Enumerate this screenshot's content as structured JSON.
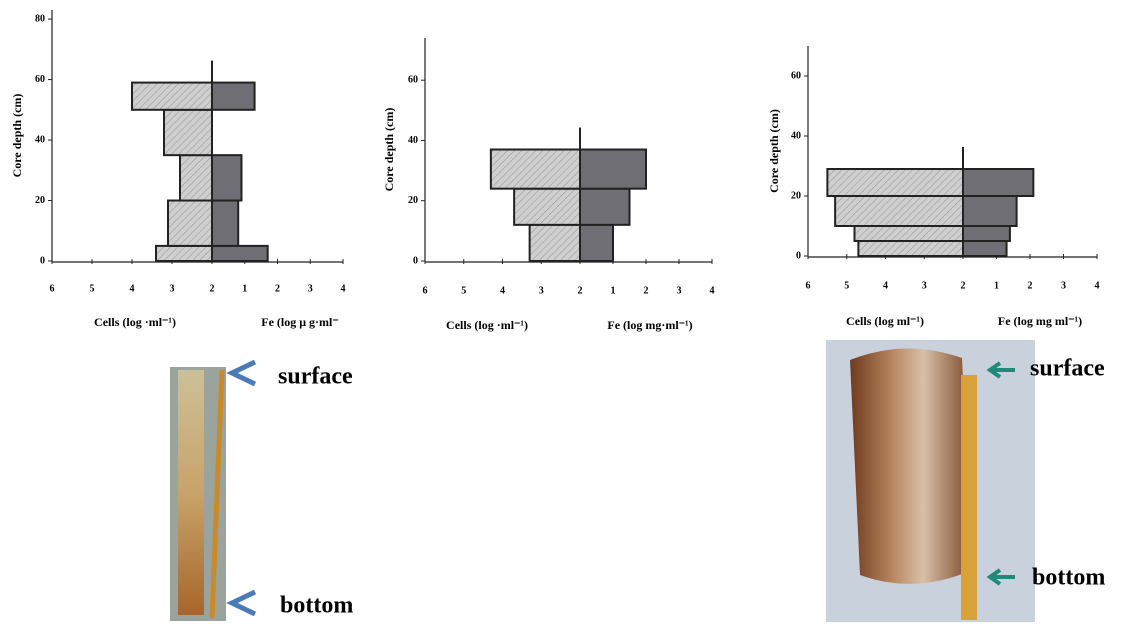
{
  "chart_data": [
    {
      "type": "butterfly",
      "y_label": "Core depth (cm)",
      "left_label": "Cells (log ·ml⁻¹)",
      "right_label": "Fe (log μ g·ml⁻",
      "ylim": [
        0,
        83
      ],
      "yticks": [
        0,
        20,
        40,
        60,
        80
      ],
      "left_xlim": [
        2,
        6
      ],
      "left_xticks": [
        2,
        3,
        4,
        5,
        6
      ],
      "right_xlim": [
        0,
        4
      ],
      "right_xticks": [
        1,
        2,
        3,
        4
      ],
      "depth_bins": [
        0,
        5,
        20,
        35,
        50,
        59
      ],
      "left_values": [
        3.4,
        3.1,
        2.8,
        3.2,
        4.0
      ],
      "right_values": [
        1.7,
        0.8,
        0.9,
        null,
        1.3
      ],
      "left_color": "#c9c9c9",
      "right_color": "#6e6e74"
    },
    {
      "type": "butterfly",
      "y_label": "Core depth (cm)",
      "left_label": "Cells (log ·ml⁻¹)",
      "right_label": "Fe (log mg·ml⁻¹)",
      "ylim": [
        0,
        74
      ],
      "yticks": [
        0,
        20,
        40,
        60
      ],
      "left_xlim": [
        2,
        6
      ],
      "left_xticks": [
        2,
        3,
        4,
        5,
        6
      ],
      "right_xlim": [
        0,
        4
      ],
      "right_xticks": [
        1,
        2,
        3,
        4
      ],
      "depth_bins": [
        0,
        12,
        24,
        37
      ],
      "left_values": [
        3.3,
        3.7,
        4.3
      ],
      "right_values": [
        1.0,
        1.5,
        2.0
      ],
      "left_color": "#c9c9c9",
      "right_color": "#6e6e74"
    },
    {
      "type": "butterfly",
      "y_label": "Core depth (cm)",
      "left_label": "Cells (log ml⁻¹)",
      "right_label": "Fe (log mg ml⁻¹)",
      "ylim": [
        0,
        70
      ],
      "yticks": [
        0,
        20,
        40,
        60
      ],
      "left_xlim": [
        2,
        6
      ],
      "left_xticks": [
        2,
        3,
        4,
        5,
        6
      ],
      "right_xlim": [
        0,
        4
      ],
      "right_xticks": [
        1,
        2,
        3,
        4
      ],
      "depth_bins": [
        0,
        5,
        10,
        20,
        29
      ],
      "left_values": [
        4.7,
        4.8,
        5.3,
        5.5
      ],
      "right_values": [
        1.3,
        1.4,
        1.6,
        2.1
      ],
      "left_color": "#c9c9c9",
      "right_color": "#6e6e74"
    }
  ],
  "photos": [
    {
      "top_label": "surface",
      "bottom_label": "bottom"
    },
    {
      "top_label": "surface",
      "bottom_label": "bottom"
    }
  ]
}
